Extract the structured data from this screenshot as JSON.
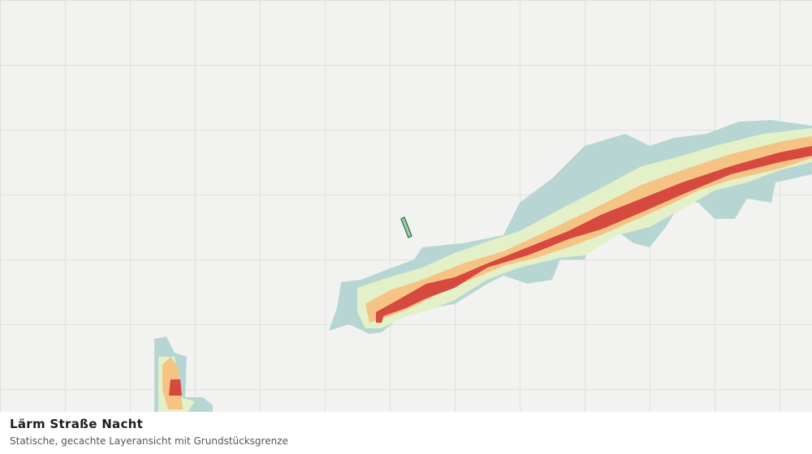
{
  "layer": {
    "title": "Lärm Straße Nacht",
    "subtitle": "Statische, gecachte Layeransicht mit Grundstücksgrenze"
  }
}
